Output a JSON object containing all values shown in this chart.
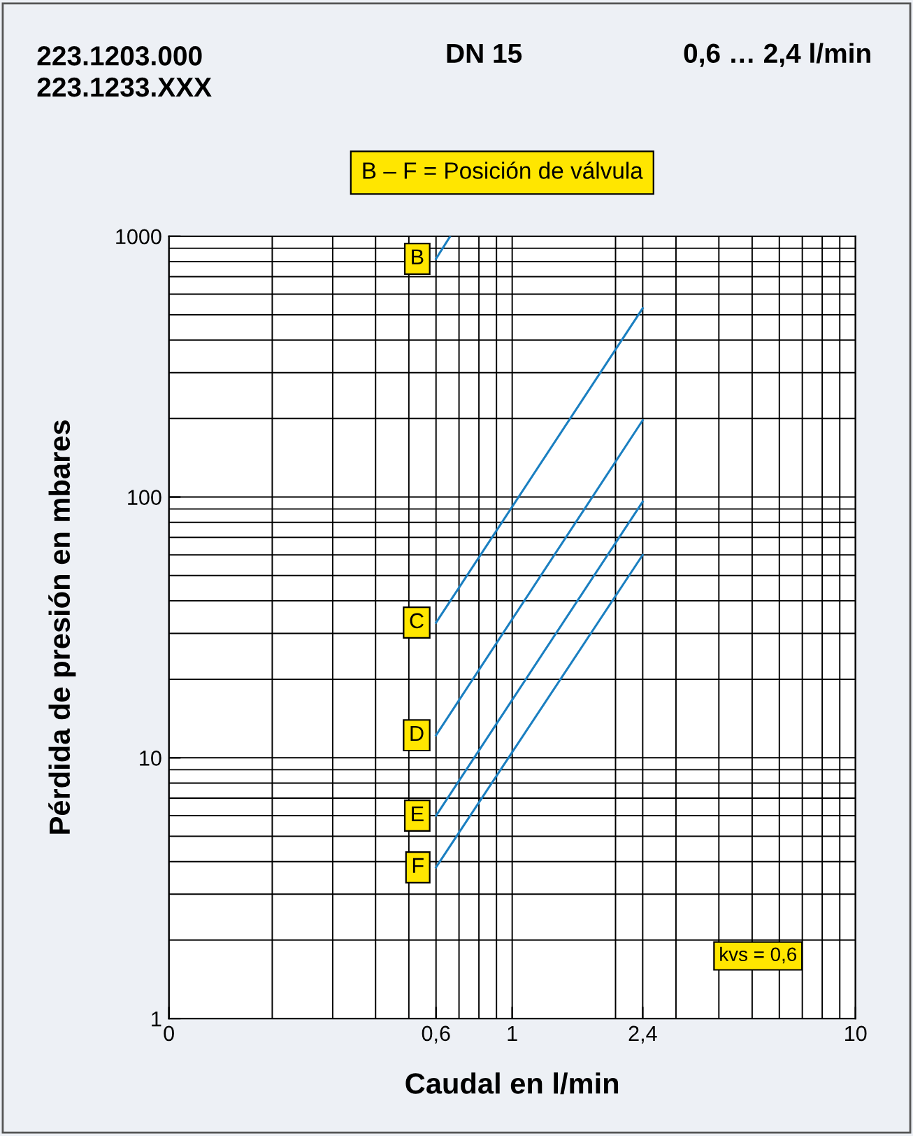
{
  "chart_data": {
    "type": "line",
    "title": "223.1203.000\n223.1233.XXX",
    "subtitle": "DN 15",
    "annotations": [
      "0,6 … 2,4 l/min",
      "B – F = Posición de válvula",
      "kvs = 0,6"
    ],
    "xlabel": "Caudal en l/min",
    "ylabel": "Pérdida de presión en mbares",
    "log": "xy",
    "xlim": [
      0.1,
      10
    ],
    "ylim": [
      1,
      1000
    ],
    "xticks": [
      {
        "value": 0.1,
        "label": "0"
      },
      {
        "value": 0.6,
        "label": "0,6"
      },
      1,
      {
        "value": 2.4,
        "label": "2,4"
      },
      10
    ],
    "yticks": [
      1,
      10,
      100,
      1000
    ],
    "grid": true,
    "legend": false,
    "marker": "none",
    "line_style": "solid",
    "series": [
      {
        "name": "B",
        "color": "#1a7fc1",
        "x": [
          0.6,
          0.66
        ],
        "values": [
          820,
          1000
        ]
      },
      {
        "name": "C",
        "color": "#1a7fc1",
        "x": [
          0.6,
          2.4
        ],
        "values": [
          33,
          530
        ]
      },
      {
        "name": "D",
        "color": "#1a7fc1",
        "x": [
          0.6,
          2.4
        ],
        "values": [
          12.2,
          197
        ]
      },
      {
        "name": "E",
        "color": "#1a7fc1",
        "x": [
          0.6,
          2.4
        ],
        "values": [
          6,
          96
        ]
      },
      {
        "name": "F",
        "color": "#1a7fc1",
        "x": [
          0.6,
          2.4
        ],
        "values": [
          3.8,
          60
        ]
      }
    ]
  }
}
